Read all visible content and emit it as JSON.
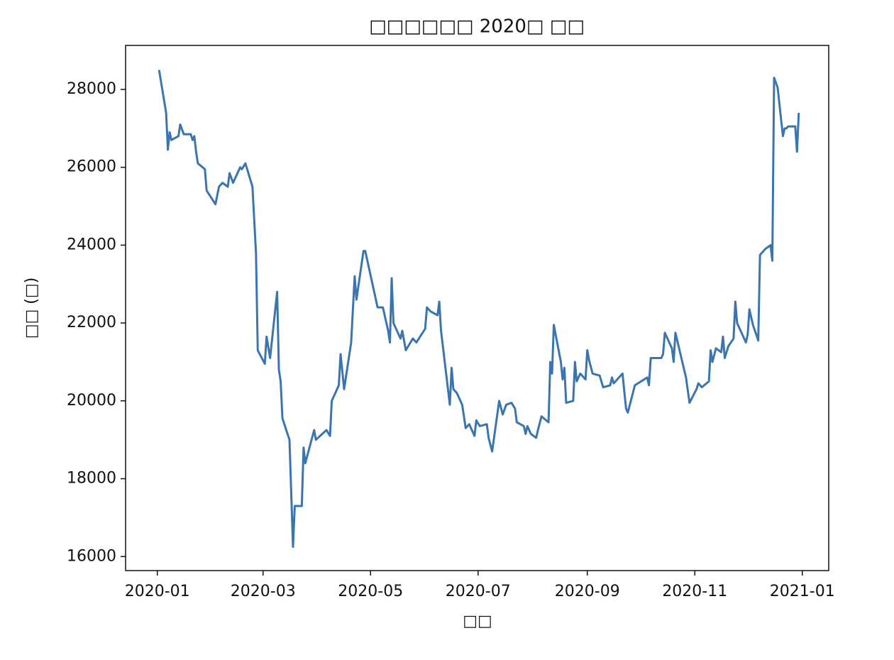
{
  "chart_data": {
    "type": "line",
    "title": "□□□□□□ 2020□ □□",
    "xlabel": "□□",
    "ylabel": "□□ (□)",
    "color": "#3b75af",
    "x": [
      "2020-01-02",
      "2020-01-06",
      "2020-01-07",
      "2020-01-08",
      "2020-01-09",
      "2020-01-13",
      "2020-01-14",
      "2020-01-16",
      "2020-01-20",
      "2020-01-21",
      "2020-01-22",
      "2020-01-23",
      "2020-01-24",
      "2020-01-28",
      "2020-01-29",
      "2020-02-03",
      "2020-02-05",
      "2020-02-07",
      "2020-02-10",
      "2020-02-11",
      "2020-02-13",
      "2020-02-17",
      "2020-02-18",
      "2020-02-20",
      "2020-02-24",
      "2020-02-26",
      "2020-02-27",
      "2020-03-02",
      "2020-03-03",
      "2020-03-05",
      "2020-03-09",
      "2020-03-10",
      "2020-03-11",
      "2020-03-12",
      "2020-03-16",
      "2020-03-18",
      "2020-03-19",
      "2020-03-23",
      "2020-03-24",
      "2020-03-25",
      "2020-03-30",
      "2020-03-31",
      "2020-04-06",
      "2020-04-08",
      "2020-04-09",
      "2020-04-13",
      "2020-04-14",
      "2020-04-16",
      "2020-04-20",
      "2020-04-22",
      "2020-04-23",
      "2020-04-27",
      "2020-04-28",
      "2020-05-05",
      "2020-05-08",
      "2020-05-11",
      "2020-05-12",
      "2020-05-13",
      "2020-05-14",
      "2020-05-18",
      "2020-05-19",
      "2020-05-21",
      "2020-05-25",
      "2020-05-27",
      "2020-06-01",
      "2020-06-02",
      "2020-06-04",
      "2020-06-08",
      "2020-06-09",
      "2020-06-10",
      "2020-06-15",
      "2020-06-16",
      "2020-06-17",
      "2020-06-19",
      "2020-06-22",
      "2020-06-24",
      "2020-06-26",
      "2020-06-29",
      "2020-06-30",
      "2020-07-02",
      "2020-07-06",
      "2020-07-07",
      "2020-07-09",
      "2020-07-13",
      "2020-07-15",
      "2020-07-17",
      "2020-07-20",
      "2020-07-22",
      "2020-07-23",
      "2020-07-27",
      "2020-07-28",
      "2020-07-29",
      "2020-07-31",
      "2020-08-03",
      "2020-08-04",
      "2020-08-06",
      "2020-08-10",
      "2020-08-11",
      "2020-08-12",
      "2020-08-13",
      "2020-08-17",
      "2020-08-18",
      "2020-08-19",
      "2020-08-20",
      "2020-08-24",
      "2020-08-25",
      "2020-08-26",
      "2020-08-28",
      "2020-08-31",
      "2020-09-01",
      "2020-09-02",
      "2020-09-04",
      "2020-09-08",
      "2020-09-10",
      "2020-09-14",
      "2020-09-15",
      "2020-09-16",
      "2020-09-18",
      "2020-09-21",
      "2020-09-23",
      "2020-09-24",
      "2020-09-28",
      "2020-10-05",
      "2020-10-06",
      "2020-10-07",
      "2020-10-13",
      "2020-10-14",
      "2020-10-15",
      "2020-10-19",
      "2020-10-20",
      "2020-10-21",
      "2020-10-27",
      "2020-10-29",
      "2020-11-02",
      "2020-11-03",
      "2020-11-05",
      "2020-11-09",
      "2020-11-10",
      "2020-11-11",
      "2020-11-13",
      "2020-11-16",
      "2020-11-17",
      "2020-11-18",
      "2020-11-20",
      "2020-11-23",
      "2020-11-24",
      "2020-11-25",
      "2020-11-30",
      "2020-12-01",
      "2020-12-02",
      "2020-12-04",
      "2020-12-07",
      "2020-12-08",
      "2020-12-11",
      "2020-12-14",
      "2020-12-15",
      "2020-12-16",
      "2020-12-18",
      "2020-12-21",
      "2020-12-22",
      "2020-12-23",
      "2020-12-24",
      "2020-12-28",
      "2020-12-29",
      "2020-12-30"
    ],
    "values": [
      28500,
      27400,
      26450,
      26900,
      26700,
      26800,
      27100,
      26850,
      26850,
      26700,
      26800,
      26400,
      26100,
      25950,
      25400,
      25050,
      25500,
      25600,
      25500,
      25850,
      25600,
      26000,
      25950,
      26100,
      25500,
      23800,
      21300,
      20950,
      21650,
      21100,
      22800,
      20800,
      20500,
      19550,
      19000,
      16250,
      17300,
      17300,
      18800,
      18400,
      19250,
      19000,
      19250,
      19100,
      20000,
      20400,
      21200,
      20300,
      21500,
      23200,
      22600,
      23850,
      23850,
      22400,
      22400,
      21800,
      21500,
      23150,
      22000,
      21600,
      21800,
      21300,
      21600,
      21500,
      21850,
      22400,
      22300,
      22200,
      22550,
      21800,
      19900,
      20850,
      20300,
      20200,
      19900,
      19300,
      19400,
      19100,
      19500,
      19350,
      19400,
      19050,
      18700,
      20000,
      19650,
      19900,
      19950,
      19800,
      19450,
      19350,
      19150,
      19350,
      19150,
      19050,
      19250,
      19600,
      19450,
      21000,
      20700,
      21950,
      21000,
      20550,
      20850,
      19950,
      20000,
      21000,
      20500,
      20700,
      20550,
      21300,
      21050,
      20700,
      20650,
      20350,
      20400,
      20600,
      20450,
      20550,
      20700,
      19800,
      19700,
      20400,
      20600,
      20400,
      21100,
      21100,
      21200,
      21750,
      21350,
      21000,
      21750,
      20600,
      19950,
      20300,
      20450,
      20350,
      20500,
      21300,
      21000,
      21350,
      21250,
      21650,
      21100,
      21400,
      21600,
      22550,
      22000,
      21500,
      21700,
      22350,
      21950,
      21550,
      23750,
      23900,
      24000,
      23600,
      28300,
      28050,
      26800,
      27000,
      27000,
      27050,
      27050,
      26400,
      27400
    ],
    "xlim": [
      "2019-12-14",
      "2021-01-16"
    ],
    "xticks": [
      "2020-01",
      "2020-03",
      "2020-05",
      "2020-07",
      "2020-09",
      "2020-11",
      "2021-01"
    ],
    "ylim": [
      15640,
      29130
    ],
    "yticks": [
      16000,
      18000,
      20000,
      22000,
      24000,
      26000,
      28000
    ]
  }
}
